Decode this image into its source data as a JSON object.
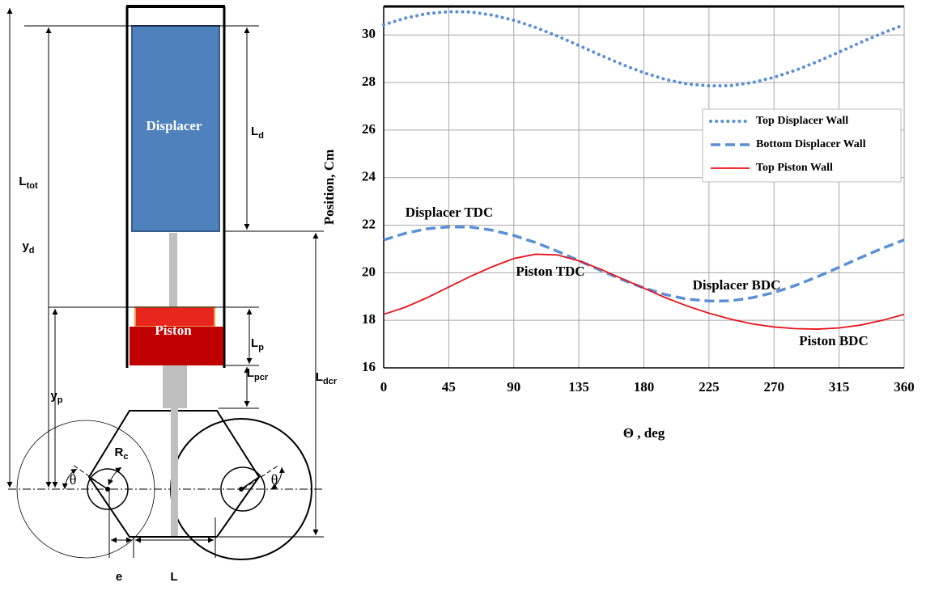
{
  "diagram": {
    "displacer": "Displacer",
    "piston": "Piston",
    "dims": [
      {
        "main": "L",
        "sub": "tot"
      },
      {
        "main": "y",
        "sub": "d"
      },
      {
        "main": "y",
        "sub": "p"
      },
      {
        "main": "L",
        "sub": "d"
      },
      {
        "main": "L",
        "sub": "p"
      },
      {
        "main": "L",
        "sub": "pcr"
      },
      {
        "main": "L",
        "sub": "dcr"
      },
      {
        "main": "R",
        "sub": "c"
      }
    ],
    "theta": "θ",
    "e": "e",
    "L": "L"
  },
  "chart_data": {
    "type": "line",
    "x_label": "Θ , deg",
    "y_label": "Position, Cm",
    "x": [
      0,
      15,
      30,
      45,
      60,
      75,
      90,
      105,
      120,
      135,
      150,
      165,
      180,
      195,
      210,
      225,
      240,
      255,
      270,
      285,
      300,
      315,
      330,
      345,
      360
    ],
    "series": [
      {
        "name": "Top Displacer Wall",
        "color": "#5b8fd6",
        "style": "dotted",
        "values": [
          30.43,
          30.71,
          30.9,
          30.98,
          30.97,
          30.84,
          30.62,
          30.32,
          29.96,
          29.56,
          29.15,
          28.76,
          28.41,
          28.13,
          27.94,
          27.86,
          27.87,
          28.0,
          28.22,
          28.52,
          28.88,
          29.28,
          29.69,
          30.08,
          30.43
        ]
      },
      {
        "name": "Bottom Displacer Wall",
        "color": "#5b8fd6",
        "style": "dashed",
        "values": [
          21.38,
          21.66,
          21.85,
          21.93,
          21.92,
          21.79,
          21.57,
          21.27,
          20.91,
          20.51,
          20.1,
          19.71,
          19.36,
          19.08,
          18.89,
          18.81,
          18.82,
          18.95,
          19.17,
          19.47,
          19.83,
          20.23,
          20.64,
          21.03,
          21.38
        ]
      },
      {
        "name": "Top Piston Wall",
        "color": "#e8141b",
        "style": "solid",
        "values": [
          18.25,
          18.55,
          18.95,
          19.4,
          19.85,
          20.25,
          20.6,
          20.78,
          20.75,
          20.5,
          20.15,
          19.75,
          19.35,
          18.95,
          18.6,
          18.3,
          18.05,
          17.85,
          17.72,
          17.65,
          17.63,
          17.68,
          17.8,
          18.0,
          18.25
        ]
      }
    ],
    "annotations": [
      "Displacer TDC",
      "Piston TDC",
      "Displacer BDC",
      "Piston BDC"
    ],
    "xlim": [
      0,
      360
    ],
    "xticks": [
      0,
      45,
      90,
      135,
      180,
      225,
      270,
      315,
      360
    ],
    "ylim": [
      16,
      31.2
    ],
    "yticks": [
      16,
      18,
      20,
      22,
      24,
      26,
      28,
      30
    ],
    "grid": true,
    "legend": "upper right"
  }
}
